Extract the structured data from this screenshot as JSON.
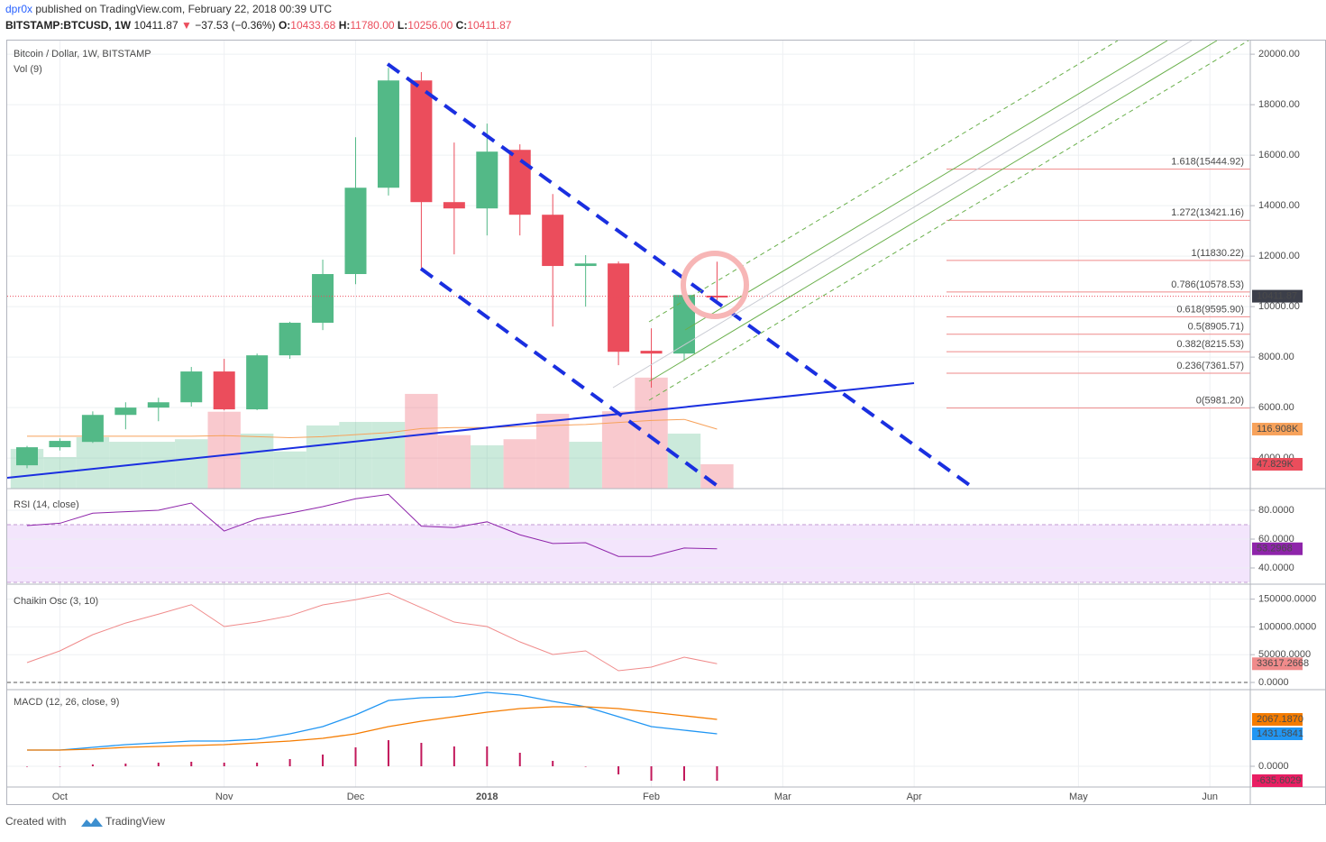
{
  "header": {
    "author": "dpr0x",
    "published": "published on TradingView.com, February 22, 2018 00:39 UTC",
    "symbol": "BITSTAMP:BTCUSD, 1W",
    "last": "10411.87",
    "change": "−37.53 (−0.36%)",
    "ohlc": [
      {
        "label": "O:",
        "value": "10433.68"
      },
      {
        "label": "H:",
        "value": "11780.00"
      },
      {
        "label": "L:",
        "value": "10256.00"
      },
      {
        "label": "C:",
        "value": "10411.87"
      }
    ]
  },
  "footer": {
    "created": "Created with",
    "brand": "TradingView"
  },
  "chart_data": [
    {
      "type": "candlestick",
      "title": "Bitcoin / Dollar, 1W, BITSTAMP",
      "categories": [
        null,
        "Oct",
        null,
        null,
        null,
        null,
        "Nov",
        null,
        null,
        null,
        "Dec",
        null,
        null,
        null,
        "2018",
        null,
        null,
        null,
        null,
        "Feb",
        null,
        null,
        null,
        "Mar",
        null,
        null,
        null,
        "Apr",
        null,
        null,
        null,
        null,
        "May",
        null,
        null,
        null,
        "Jun",
        null
      ],
      "open": [
        3714,
        4430,
        4640,
        5710,
        6000,
        6210,
        7430,
        5930,
        8070,
        9360,
        11290,
        14710,
        18960,
        14140,
        13890,
        16210,
        13640,
        11610,
        11710,
        8250,
        8140,
        10433.68,
        null,
        null,
        null,
        null,
        null,
        null,
        null,
        null,
        null,
        null,
        null,
        null,
        null,
        null,
        null,
        null
      ],
      "high": [
        4480,
        4780,
        5850,
        6210,
        6390,
        7610,
        7930,
        8140,
        9400,
        11860,
        16710,
        19460,
        19290,
        16500,
        17250,
        16430,
        14460,
        12040,
        11790,
        9140,
        10470,
        11780,
        null,
        null,
        null,
        null,
        null,
        null,
        null,
        null,
        null,
        null,
        null,
        null,
        null,
        null,
        null,
        null
      ],
      "low": [
        3600,
        4300,
        4600,
        5140,
        5460,
        6040,
        5890,
        5900,
        7930,
        9070,
        10890,
        14400,
        11430,
        12070,
        12820,
        12820,
        9210,
        10000,
        7680,
        6790,
        7860,
        10256,
        null,
        null,
        null,
        null,
        null,
        null,
        null,
        null,
        null,
        null,
        null,
        null,
        null,
        null,
        null,
        null
      ],
      "close": [
        4429,
        4680,
        5710,
        6000,
        6210,
        7430,
        5930,
        8070,
        9360,
        11290,
        14710,
        18960,
        14140,
        13890,
        16140,
        13640,
        11610,
        11710,
        8210,
        8140,
        10460,
        10411.87,
        null,
        null,
        null,
        null,
        null,
        null,
        null,
        null,
        null,
        null,
        null,
        null,
        null,
        null,
        null,
        null
      ],
      "up_color": "#53b987",
      "down_color": "#eb4d5c",
      "ylim": [
        2790,
        20540
      ],
      "yticks": [
        {
          "value": 4000,
          "label": "4000.00"
        },
        {
          "value": 6000,
          "label": "6000.00"
        },
        {
          "value": 8000,
          "label": "8000.00"
        },
        {
          "value": 10000,
          "label": "10000.00"
        },
        {
          "value": 12000,
          "label": "12000.00"
        },
        {
          "value": 14000,
          "label": "14000.00"
        },
        {
          "value": 16000,
          "label": "16000.00"
        },
        {
          "value": 18000,
          "label": "18000.00"
        },
        {
          "value": 20000,
          "label": "20000.00"
        }
      ],
      "last_price": 10411.87,
      "grid": true,
      "volume": {
        "name": "Vol (9)",
        "ylim": [
          0,
          880
        ],
        "values": [
          78,
          62,
          101,
          92,
          92,
          97,
          151,
          108,
          73,
          124,
          131,
          131,
          186,
          105,
          85,
          97,
          147,
          92,
          152,
          218,
          108,
          47.829,
          null,
          null,
          null,
          null,
          null,
          null,
          null,
          null,
          null,
          null,
          null,
          null,
          null,
          null,
          null,
          null
        ],
        "last_label": "47.829K",
        "ma_color": "#f7a25b",
        "ma": [
          103,
          103,
          103,
          103,
          103,
          103,
          104,
          102,
          100,
          102,
          106,
          110,
          118,
          120,
          120,
          122,
          124,
          126,
          130,
          134,
          136,
          116.908,
          null,
          null,
          null,
          null,
          null,
          null,
          null,
          null,
          null,
          null,
          null,
          null,
          null,
          null,
          null,
          null
        ],
        "ma_last_label": "116.908K"
      },
      "fib": [
        {
          "label": "1.618(15444.92)",
          "value": 15444.92
        },
        {
          "label": "1.272(13421.16)",
          "value": 13421.16
        },
        {
          "label": "1(11830.22)",
          "value": 11830.22
        },
        {
          "label": "0.786(10578.53)",
          "value": 10578.53
        },
        {
          "label": "0.618(9595.90)",
          "value": 9595.9
        },
        {
          "label": "0.5(8905.71)",
          "value": 8905.71
        },
        {
          "label": "0.382(8215.53)",
          "value": 8215.53
        },
        {
          "label": "0.236(7361.57)",
          "value": 7361.57
        },
        {
          "label": "0(5981.20)",
          "value": 5981.2
        }
      ]
    },
    {
      "type": "line",
      "title": "RSI (14, close)",
      "ylim": [
        28.75,
        94.4
      ],
      "yticks": [
        {
          "value": 40,
          "label": "40.0000"
        },
        {
          "value": 60,
          "label": "60.0000"
        },
        {
          "value": 80,
          "label": "80.0000"
        }
      ],
      "band": [
        30,
        70
      ],
      "series": [
        {
          "color": "#8e24aa",
          "values": [
            69.4,
            71,
            78,
            79,
            80,
            85,
            65.6,
            74,
            78,
            82.5,
            88,
            91,
            69,
            68,
            72,
            63,
            57,
            57.5,
            48,
            48,
            53.8,
            53.2968,
            null,
            null,
            null,
            null,
            null,
            null,
            null,
            null,
            null,
            null,
            null,
            null,
            null,
            null,
            null,
            null
          ]
        }
      ]
    },
    {
      "type": "line",
      "title": "Chaikin Osc (3, 10)",
      "ylim": [
        -13000,
        173700
      ],
      "yticks": [
        {
          "value": 0,
          "label": "0.0000"
        },
        {
          "value": 50000,
          "label": "50000.0000"
        },
        {
          "value": 100000,
          "label": "100000.0000"
        },
        {
          "value": 150000,
          "label": "150000.0000"
        }
      ],
      "series": [
        {
          "color": "#f08b8b",
          "values": [
            35700,
            56800,
            86000,
            107000,
            123000,
            140000,
            100600,
            108700,
            120000,
            139600,
            149000,
            160700,
            134700,
            108700,
            100600,
            73000,
            50300,
            56800,
            21100,
            27600,
            45500,
            33617.2668,
            null,
            null,
            null,
            null,
            null,
            null,
            null,
            null,
            null,
            null,
            null,
            null,
            null,
            null,
            null,
            null
          ]
        }
      ]
    },
    {
      "type": "macd",
      "title": "MACD (12, 26, close, 9)",
      "ylim": [
        -914,
        3299
      ],
      "yticks": [
        {
          "value": 0,
          "label": "0.0000"
        }
      ],
      "histogram": {
        "color": "#c2185b",
        "badge_color": "#e91e63",
        "values": [
          0,
          0,
          80,
          119,
          159,
          199,
          159,
          159,
          318,
          517,
          834,
          1151,
          1033,
          874,
          874,
          596,
          239,
          0,
          -358,
          -636,
          -636,
          -635.6029,
          null,
          null,
          null,
          null,
          null,
          null,
          null,
          null,
          null,
          null,
          null,
          null,
          null,
          null,
          null,
          null
        ]
      },
      "series": [
        {
          "color": "#2196f3",
          "values": [
            715,
            715,
            835,
            954,
            1033,
            1113,
            1113,
            1192,
            1431,
            1749,
            2265,
            2900,
            3020,
            3060,
            3259,
            3140,
            2862,
            2623,
            2186,
            1749,
            1590,
            1431.5841,
            null,
            null,
            null,
            null,
            null,
            null,
            null,
            null,
            null,
            null,
            null,
            null,
            null,
            null,
            null,
            null
          ]
        },
        {
          "color": "#f57c00",
          "last_label": "2067.1870",
          "values": [
            715,
            715,
            755,
            835,
            874,
            914,
            954,
            1033,
            1113,
            1232,
            1431,
            1749,
            1987,
            2186,
            2385,
            2544,
            2623,
            2623,
            2544,
            2385,
            2226,
            2067.187,
            null,
            null,
            null,
            null,
            null,
            null,
            null,
            null,
            null,
            null,
            null,
            null,
            null,
            null,
            null,
            null
          ]
        }
      ]
    }
  ]
}
